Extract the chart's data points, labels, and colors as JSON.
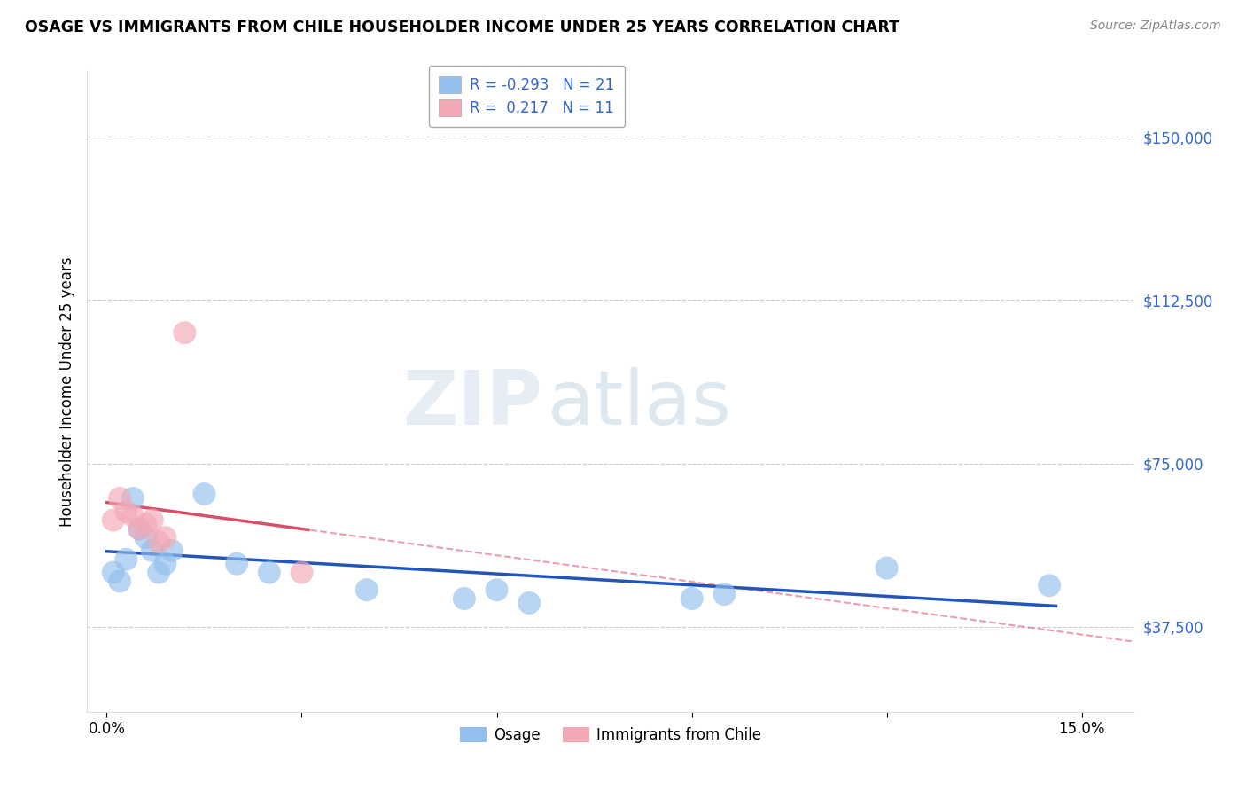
{
  "title": "OSAGE VS IMMIGRANTS FROM CHILE HOUSEHOLDER INCOME UNDER 25 YEARS CORRELATION CHART",
  "source": "Source: ZipAtlas.com",
  "ylabel": "Householder Income Under 25 years",
  "x_ticks": [
    0.0,
    0.03,
    0.06,
    0.09,
    0.12,
    0.15
  ],
  "y_ticks": [
    37500,
    75000,
    112500,
    150000
  ],
  "y_tick_labels": [
    "$37,500",
    "$75,000",
    "$112,500",
    "$150,000"
  ],
  "osage_color": "#92bfed",
  "chile_color": "#f2a8b5",
  "osage_line_color": "#2255bb",
  "chile_line_color": "#d94f6a",
  "watermark_zip": "ZIP",
  "watermark_atlas": "atlas",
  "osage_points": [
    [
      0.001,
      50000
    ],
    [
      0.002,
      48000
    ],
    [
      0.003,
      53000
    ],
    [
      0.004,
      67000
    ],
    [
      0.005,
      60000
    ],
    [
      0.006,
      58000
    ],
    [
      0.007,
      55000
    ],
    [
      0.008,
      50000
    ],
    [
      0.009,
      52000
    ],
    [
      0.01,
      55000
    ],
    [
      0.015,
      68000
    ],
    [
      0.02,
      52000
    ],
    [
      0.025,
      50000
    ],
    [
      0.04,
      46000
    ],
    [
      0.055,
      44000
    ],
    [
      0.06,
      46000
    ],
    [
      0.065,
      43000
    ],
    [
      0.09,
      44000
    ],
    [
      0.095,
      45000
    ],
    [
      0.12,
      51000
    ],
    [
      0.145,
      47000
    ]
  ],
  "chile_points": [
    [
      0.001,
      62000
    ],
    [
      0.002,
      67000
    ],
    [
      0.003,
      64000
    ],
    [
      0.004,
      63000
    ],
    [
      0.005,
      60000
    ],
    [
      0.006,
      61000
    ],
    [
      0.007,
      62000
    ],
    [
      0.008,
      57000
    ],
    [
      0.009,
      58000
    ],
    [
      0.012,
      105000
    ],
    [
      0.03,
      50000
    ]
  ],
  "xlim": [
    -0.003,
    0.158
  ],
  "ylim": [
    18000,
    165000
  ],
  "figsize": [
    14.06,
    8.92
  ],
  "dpi": 100,
  "legend_r1": "R = -0.293",
  "legend_n1": "N = 21",
  "legend_r2": "R =  0.217",
  "legend_n2": "N = 11"
}
